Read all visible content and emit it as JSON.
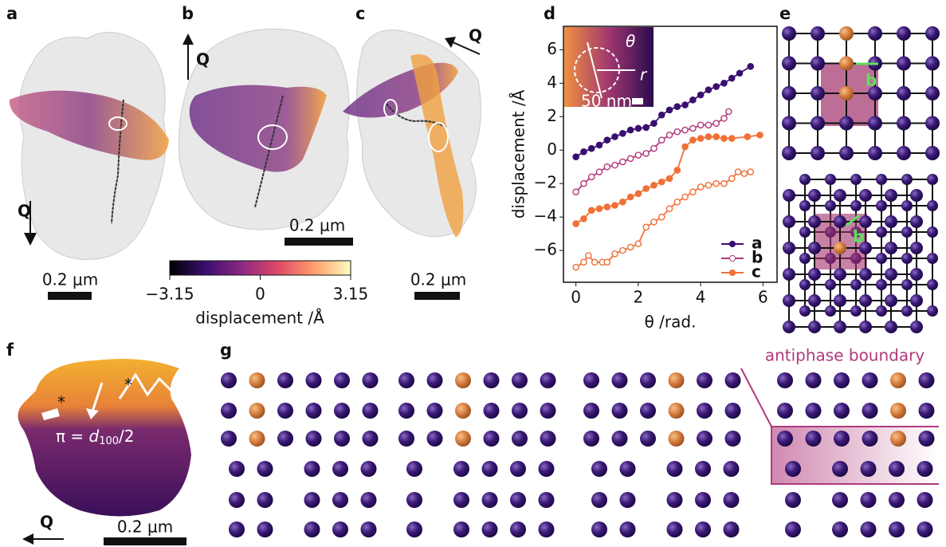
{
  "panels": {
    "a": {
      "label": "a",
      "q": "Q",
      "scale": "0.2 μm"
    },
    "b": {
      "label": "b",
      "q": "Q",
      "scale": "0.2 μm"
    },
    "c": {
      "label": "c",
      "q": "Q",
      "scale": "0.2 μm"
    },
    "d": {
      "label": "d",
      "inset": {
        "theta": "θ",
        "r": "r",
        "scale": "50 nm"
      }
    },
    "e": {
      "label": "e",
      "burgers_top": "b",
      "burgers_bottom": "b"
    },
    "f": {
      "label": "f",
      "q": "Q",
      "scale": "0.2 μm",
      "star": "*",
      "formula": {
        "lhs": "π = ",
        "d": "d",
        "sub": "100",
        "rest": "/2"
      }
    },
    "g": {
      "label": "g",
      "annotation": "antiphase boundary"
    }
  },
  "colorbar": {
    "label": "displacement /Å",
    "lim": [
      -3.15,
      3.15
    ],
    "ticks": [
      {
        "value": -3.15,
        "label": "−3.15"
      },
      0,
      3.15
    ],
    "colors": [
      "#000004",
      "#3b0f70",
      "#8c2981",
      "#de4968",
      "#fe9f6d",
      "#fcfdbf"
    ]
  },
  "chart_data": {
    "type": "line",
    "xlabel": "θ /rad.",
    "ylabel": "displacement /Å",
    "xlim": [
      -0.4,
      6.45
    ],
    "ylim": [
      -7.9,
      7.4
    ],
    "xticks": [
      0,
      2,
      4,
      6
    ],
    "yticks": [
      {
        "value": -6,
        "label": "−6"
      },
      {
        "value": -4,
        "label": "−4"
      },
      {
        "value": -2,
        "label": "−2"
      },
      0,
      2,
      4,
      6
    ],
    "legend": "lower right",
    "series": [
      {
        "name": "a",
        "color": "#3b0f70",
        "marker": "filled",
        "x": [
          0,
          0.25,
          0.5,
          0.75,
          1,
          1.25,
          1.5,
          1.75,
          2,
          2.25,
          2.5,
          2.75,
          3,
          3.25,
          3.5,
          3.75,
          4,
          4.25,
          4.5,
          4.75,
          5,
          5.25,
          5.6
        ],
        "values": [
          -0.4,
          -0.1,
          0.1,
          0.3,
          0.6,
          0.8,
          1,
          1.2,
          1.3,
          1.35,
          1.6,
          2.1,
          2.4,
          2.6,
          2.7,
          3,
          3.3,
          3.6,
          3.8,
          4,
          4.3,
          4.6,
          5
        ]
      },
      {
        "name": "b",
        "color": "#b03a7c",
        "marker": "open",
        "x": [
          0,
          0.25,
          0.5,
          0.75,
          1,
          1.25,
          1.5,
          1.75,
          2,
          2.25,
          2.5,
          2.75,
          3,
          3.25,
          3.5,
          3.75,
          4,
          4.25,
          4.5,
          4.75,
          4.9
        ],
        "values": [
          -2.5,
          -2,
          -1.6,
          -1.3,
          -1,
          -0.9,
          -0.7,
          -0.5,
          -0.3,
          -0.2,
          0.1,
          0.6,
          0.9,
          1.1,
          1.2,
          1.3,
          1.5,
          1.5,
          1.6,
          1.9,
          2.3
        ]
      },
      {
        "name": "c",
        "color": "#f07036",
        "marker": "filled",
        "x": [
          0,
          0.25,
          0.5,
          0.75,
          1,
          1.25,
          1.5,
          1.75,
          2,
          2.25,
          2.5,
          2.75,
          3,
          3.25,
          3.5,
          3.75,
          4,
          4.25,
          4.5,
          4.75,
          5,
          5.5,
          5.9
        ],
        "values": [
          -4.4,
          -4.1,
          -3.6,
          -3.5,
          -3.4,
          -3.3,
          -3.1,
          -2.8,
          -2.6,
          -2.3,
          -2.1,
          -1.9,
          -1.7,
          -1.2,
          0.2,
          0.6,
          0.7,
          0.8,
          0.8,
          0.7,
          0.7,
          0.8,
          0.9
        ]
      },
      {
        "color": "#f07036",
        "marker": "open",
        "x": [
          0,
          0.25,
          0.4,
          0.6,
          0.85,
          1,
          1.25,
          1.5,
          1.75,
          2,
          2.25,
          2.5,
          2.75,
          3,
          3.25,
          3.5,
          3.75,
          4,
          4.25,
          4.5,
          4.75,
          5,
          5.2,
          5.4,
          5.6
        ],
        "values": [
          -7,
          -6.7,
          -6.3,
          -6.7,
          -6.7,
          -6.7,
          -6.2,
          -6,
          -5.8,
          -5.6,
          -4.6,
          -4.3,
          -4,
          -3.5,
          -3.1,
          -2.8,
          -2.5,
          -2.2,
          -2.1,
          -2,
          -2,
          -1.7,
          -1.3,
          -1.4,
          -1.3
        ]
      }
    ]
  }
}
